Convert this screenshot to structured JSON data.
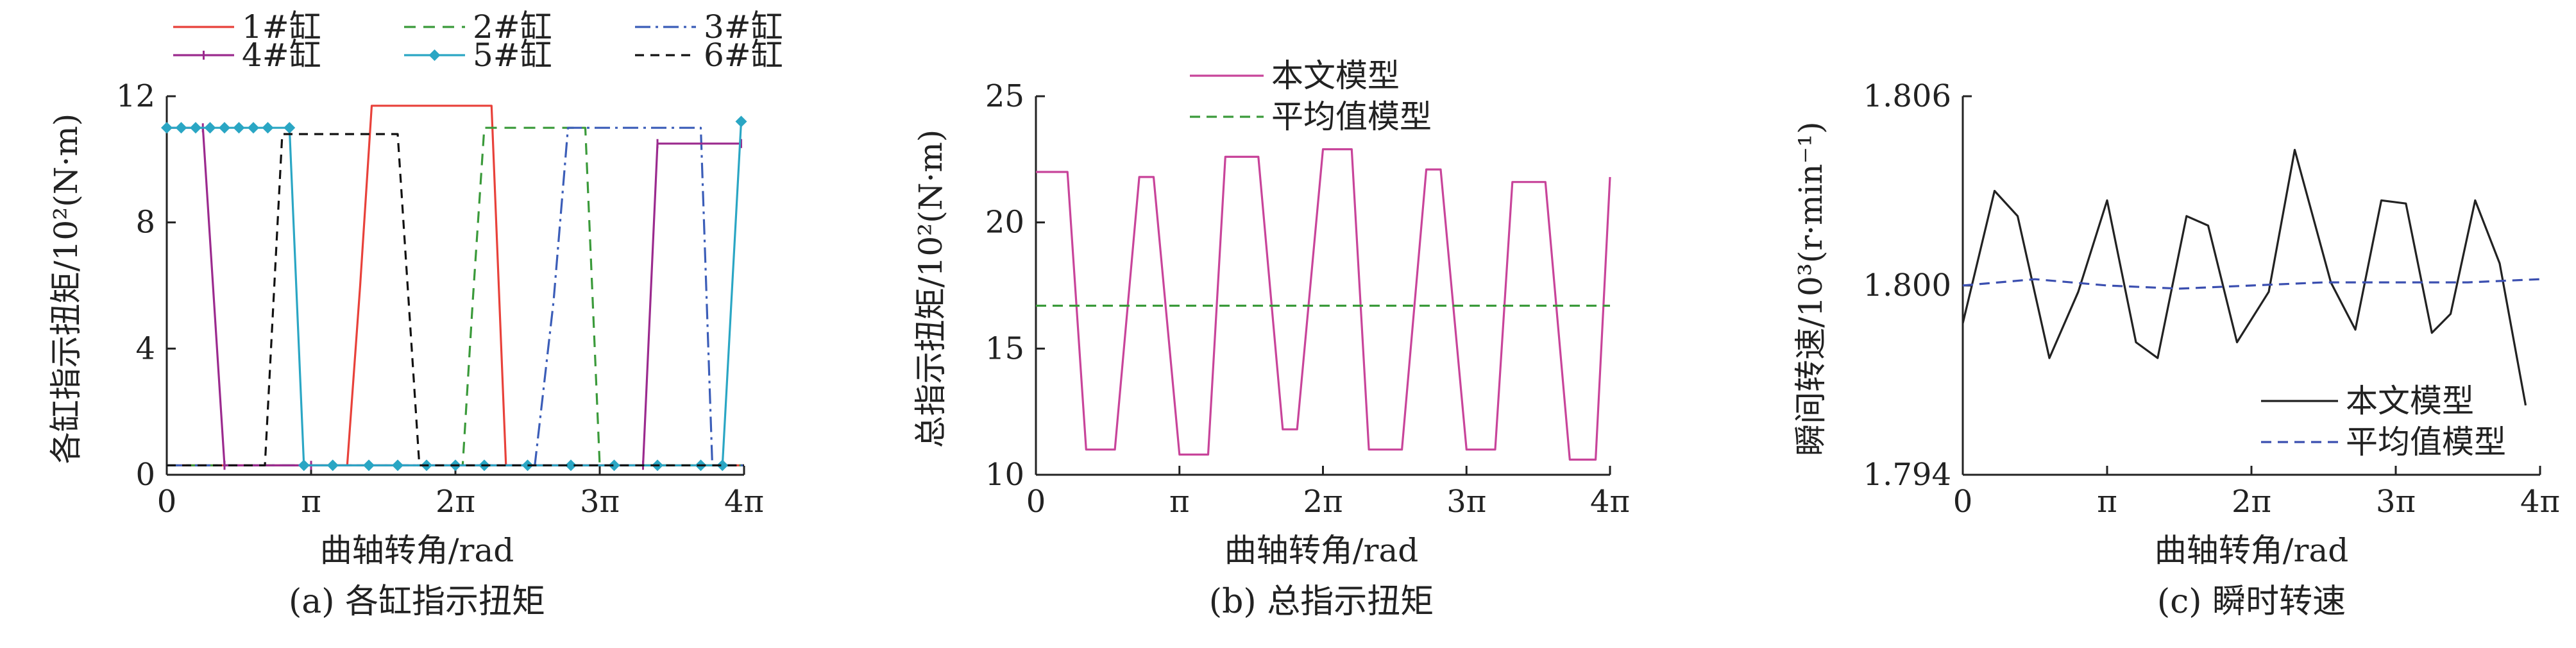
{
  "chart_data": [
    {
      "type": "line",
      "caption": "(a) 各缸指示扭矩",
      "xlabel": "曲轴转角/rad",
      "ylabel": "各缸指示扭矩/10²(N·m)",
      "xlim": [
        0,
        4
      ],
      "ylim": [
        0,
        12
      ],
      "x_unit": "π rad",
      "xticks": [
        {
          "v": 0,
          "label": "0"
        },
        {
          "v": 1,
          "label": "π"
        },
        {
          "v": 2,
          "label": "2π"
        },
        {
          "v": 3,
          "label": "3π"
        },
        {
          "v": 4,
          "label": "4π"
        }
      ],
      "yticks": [
        {
          "v": 0,
          "label": "0"
        },
        {
          "v": 4,
          "label": "4"
        },
        {
          "v": 8,
          "label": "8"
        },
        {
          "v": 12,
          "label": "12"
        }
      ],
      "legend_position": "top",
      "series": [
        {
          "name": "1#缸",
          "color": "#e8413a",
          "dash": "",
          "marker": "none",
          "x": [
            0,
            1.25,
            1.34,
            1.42,
            2.25,
            2.35,
            4
          ],
          "y": [
            0.3,
            0.3,
            6,
            11.7,
            11.7,
            0.3,
            0.3
          ]
        },
        {
          "name": "2#缸",
          "color": "#3a9a3a",
          "dash": "18,12",
          "marker": "none",
          "x": [
            0,
            2.05,
            2.12,
            2.2,
            2.9,
            3.0,
            4
          ],
          "y": [
            0.3,
            0.3,
            5.5,
            11.0,
            11.0,
            0.3,
            0.3
          ]
        },
        {
          "name": "3#缸",
          "color": "#3b5db8",
          "dash": "24,8,4,8",
          "marker": "none",
          "x": [
            0,
            2.55,
            2.68,
            2.78,
            3.7,
            3.78,
            4
          ],
          "y": [
            0.3,
            0.3,
            5.5,
            11.0,
            11.0,
            0.3,
            0.3
          ]
        },
        {
          "name": "4#缸",
          "color": "#9b2a8e",
          "dash": "",
          "marker": "tick",
          "x": [
            0,
            0.25,
            0.4,
            1.0,
            3.3,
            3.4,
            3.98
          ],
          "y": [
            11.0,
            11.0,
            0.3,
            0.3,
            0.3,
            10.5,
            10.5
          ]
        },
        {
          "name": "5#缸",
          "color": "#2aa6c4",
          "dash": "",
          "marker": "diamond",
          "x": [
            0,
            0.1,
            0.2,
            0.3,
            0.4,
            0.5,
            0.6,
            0.7,
            0.85,
            0.95,
            1.15,
            1.4,
            1.6,
            1.8,
            2.0,
            2.2,
            2.5,
            2.8,
            3.1,
            3.4,
            3.7,
            3.85,
            3.98
          ],
          "y": [
            11.0,
            11.0,
            11.0,
            11.0,
            11.0,
            11.0,
            11.0,
            11.0,
            11.0,
            0.3,
            0.3,
            0.3,
            0.3,
            0.3,
            0.3,
            0.3,
            0.3,
            0.3,
            0.3,
            0.3,
            0.3,
            0.3,
            11.2
          ]
        },
        {
          "name": "6#缸",
          "color": "#111111",
          "dash": "14,10",
          "marker": "none",
          "x": [
            0,
            0.68,
            0.8,
            1.6,
            1.75,
            4
          ],
          "y": [
            0.3,
            0.3,
            10.8,
            10.8,
            0.3,
            0.3
          ]
        }
      ]
    },
    {
      "type": "line",
      "caption": "(b) 总指示扭矩",
      "xlabel": "曲轴转角/rad",
      "ylabel": "总指示扭矩/10²(N·m)",
      "xlim": [
        0,
        4
      ],
      "ylim": [
        10,
        25
      ],
      "x_unit": "π rad",
      "xticks": [
        {
          "v": 0,
          "label": "0"
        },
        {
          "v": 1,
          "label": "π"
        },
        {
          "v": 2,
          "label": "2π"
        },
        {
          "v": 3,
          "label": "3π"
        },
        {
          "v": 4,
          "label": "4π"
        }
      ],
      "yticks": [
        {
          "v": 10,
          "label": "10"
        },
        {
          "v": 15,
          "label": "15"
        },
        {
          "v": 20,
          "label": "20"
        },
        {
          "v": 25,
          "label": "25"
        }
      ],
      "legend_position": "top",
      "series": [
        {
          "name": "本文模型",
          "color": "#c8449a",
          "dash": "",
          "marker": "none",
          "x": [
            0,
            0.22,
            0.35,
            0.55,
            0.72,
            0.82,
            1.0,
            1.2,
            1.32,
            1.55,
            1.72,
            1.82,
            2.0,
            2.2,
            2.32,
            2.55,
            2.72,
            2.82,
            3.0,
            3.2,
            3.32,
            3.55,
            3.72,
            3.75,
            3.9,
            4.0
          ],
          "y": [
            22.0,
            22.0,
            11.0,
            11.0,
            21.8,
            21.8,
            10.8,
            10.8,
            22.6,
            22.6,
            11.8,
            11.8,
            22.9,
            22.9,
            11.0,
            11.0,
            22.1,
            22.1,
            11.0,
            11.0,
            21.6,
            21.6,
            10.6,
            10.6,
            10.6,
            21.8
          ]
        },
        {
          "name": "平均值模型",
          "color": "#3a9a3a",
          "dash": "16,10",
          "marker": "none",
          "x": [
            0,
            4.0
          ],
          "y": [
            16.7,
            16.7
          ]
        }
      ]
    },
    {
      "type": "line",
      "caption": "(c) 瞬时转速",
      "xlabel": "曲轴转角/rad",
      "ylabel": "瞬间转速/10³(r·min⁻¹)",
      "xlim": [
        0,
        4
      ],
      "ylim": [
        1.794,
        1.806
      ],
      "x_unit": "π rad",
      "xticks": [
        {
          "v": 0,
          "label": "0"
        },
        {
          "v": 1,
          "label": "π"
        },
        {
          "v": 2,
          "label": "2π"
        },
        {
          "v": 3,
          "label": "3π"
        },
        {
          "v": 4,
          "label": "4π"
        }
      ],
      "yticks": [
        {
          "v": 1.794,
          "label": "1.794"
        },
        {
          "v": 1.8,
          "label": "1.800"
        },
        {
          "v": 1.806,
          "label": "1.806"
        }
      ],
      "legend_position": "bottom-right",
      "series": [
        {
          "name": "本文模型",
          "color": "#222222",
          "dash": "",
          "marker": "none",
          "x": [
            0,
            0.22,
            0.38,
            0.6,
            0.8,
            1.0,
            1.2,
            1.35,
            1.55,
            1.7,
            1.9,
            2.12,
            2.3,
            2.55,
            2.72,
            2.9,
            3.07,
            3.25,
            3.38,
            3.55,
            3.72,
            3.9
          ],
          "y": [
            1.7988,
            1.803,
            1.8022,
            1.7977,
            1.7998,
            1.8027,
            1.7982,
            1.7977,
            1.8022,
            1.8019,
            1.7982,
            1.7998,
            1.8043,
            1.8001,
            1.7986,
            1.8027,
            1.8026,
            1.7985,
            1.7991,
            1.8027,
            1.8007,
            1.7962
          ]
        },
        {
          "name": "平均值模型",
          "color": "#3b4fb0",
          "dash": "16,10",
          "marker": "none",
          "x": [
            0,
            0.5,
            1.0,
            1.5,
            2.0,
            2.5,
            3.0,
            3.5,
            4.0
          ],
          "y": [
            1.8,
            1.8002,
            1.8,
            1.7999,
            1.8,
            1.8001,
            1.8001,
            1.8001,
            1.8002
          ]
        }
      ]
    }
  ]
}
